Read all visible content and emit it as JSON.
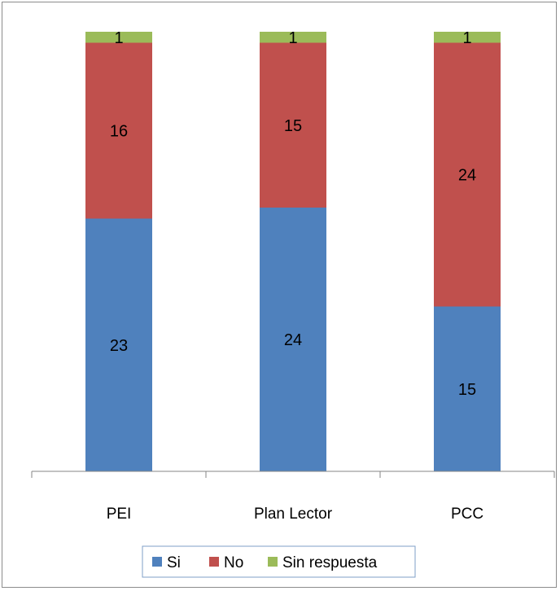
{
  "chart_data": {
    "type": "bar",
    "stacked": true,
    "categories": [
      "PEI",
      "Plan Lector",
      "PCC"
    ],
    "series": [
      {
        "name": "Si",
        "values": [
          23,
          24,
          15
        ],
        "color": "#4f81bd"
      },
      {
        "name": "No",
        "values": [
          16,
          15,
          24
        ],
        "color": "#c0504d"
      },
      {
        "name": "Sin respuesta",
        "values": [
          1,
          1,
          1
        ],
        "color": "#9bbb59"
      }
    ],
    "title": "",
    "xlabel": "",
    "ylabel": "",
    "ylim": [
      0,
      40
    ],
    "grid": false,
    "legend": "bottom"
  }
}
